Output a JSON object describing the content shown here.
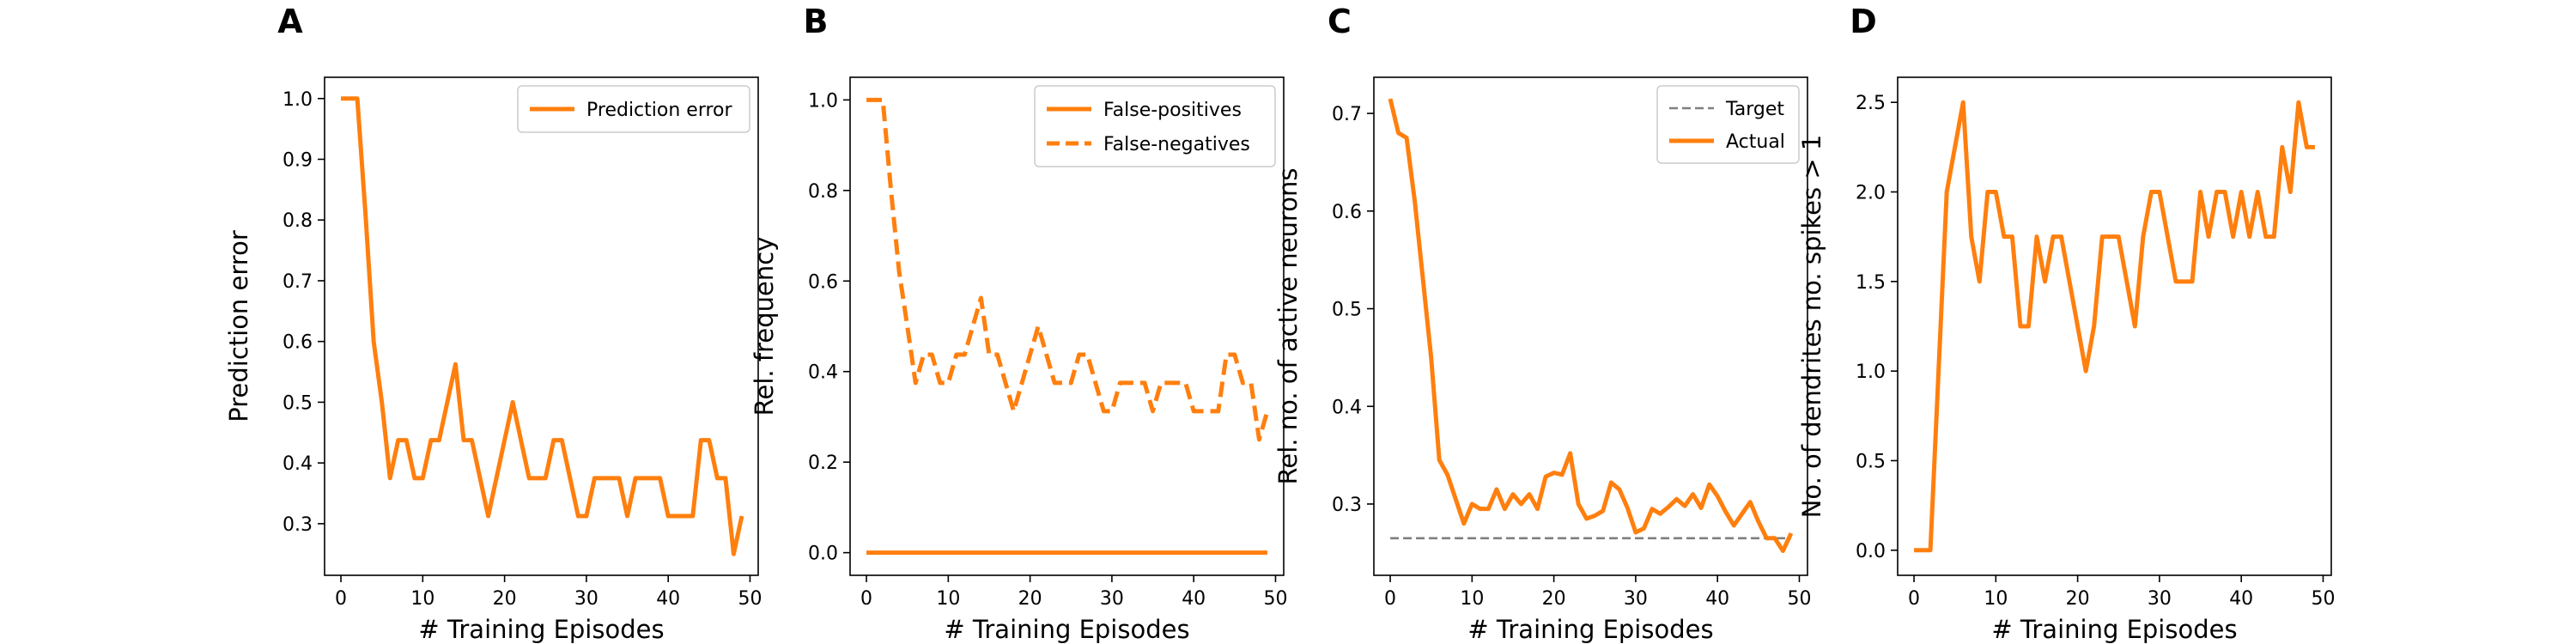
{
  "colors": {
    "orange": "#ff7f0e",
    "gray": "#7f7f7f",
    "frame": "#000000",
    "legend_frame": "#cccccc"
  },
  "chart_data": [
    {
      "panel": "A",
      "type": "line",
      "xlabel": "# Training Episodes",
      "ylabel": "Prediction error",
      "xlim": [
        -2,
        51
      ],
      "ylim": [
        0.215,
        1.035
      ],
      "xticks": [
        0,
        10,
        20,
        30,
        40,
        50
      ],
      "yticks": [
        0.3,
        0.4,
        0.5,
        0.6,
        0.7,
        0.8,
        0.9,
        1.0
      ],
      "ytick_labels": [
        "0.3",
        "0.4",
        "0.5",
        "0.6",
        "0.7",
        "0.8",
        "0.9",
        "1.0"
      ],
      "legend": "upper right",
      "series": [
        {
          "name": "Prediction error",
          "style": "solid",
          "color": "#ff7f0e",
          "x": [
            0,
            1,
            2,
            3,
            4,
            5,
            6,
            7,
            8,
            9,
            10,
            11,
            12,
            13,
            14,
            15,
            16,
            17,
            18,
            19,
            20,
            21,
            22,
            23,
            24,
            25,
            26,
            27,
            28,
            29,
            30,
            31,
            32,
            33,
            34,
            35,
            36,
            37,
            38,
            39,
            40,
            41,
            42,
            43,
            44,
            45,
            46,
            47,
            48,
            49
          ],
          "y": [
            1.0,
            1.0,
            1.0,
            0.81,
            0.6,
            0.5,
            0.375,
            0.4375,
            0.4375,
            0.375,
            0.375,
            0.4375,
            0.4375,
            0.5,
            0.5625,
            0.4375,
            0.4375,
            0.375,
            0.3125,
            0.375,
            0.4375,
            0.5,
            0.4375,
            0.375,
            0.375,
            0.375,
            0.4375,
            0.4375,
            0.375,
            0.3125,
            0.3125,
            0.375,
            0.375,
            0.375,
            0.375,
            0.3125,
            0.375,
            0.375,
            0.375,
            0.375,
            0.3125,
            0.3125,
            0.3125,
            0.3125,
            0.4375,
            0.4375,
            0.375,
            0.375,
            0.25,
            0.3125
          ]
        }
      ]
    },
    {
      "panel": "B",
      "type": "line",
      "xlabel": "# Training Episodes",
      "ylabel": "Rel. frequency",
      "xlim": [
        -2,
        51
      ],
      "ylim": [
        -0.05,
        1.05
      ],
      "xticks": [
        0,
        10,
        20,
        30,
        40,
        50
      ],
      "yticks": [
        0.0,
        0.2,
        0.4,
        0.6,
        0.8,
        1.0
      ],
      "ytick_labels": [
        "0.0",
        "0.2",
        "0.4",
        "0.6",
        "0.8",
        "1.0"
      ],
      "legend": "upper right",
      "series": [
        {
          "name": "False-positives",
          "style": "solid",
          "color": "#ff7f0e",
          "x": [
            0,
            1,
            2,
            3,
            4,
            5,
            6,
            7,
            8,
            9,
            10,
            11,
            12,
            13,
            14,
            15,
            16,
            17,
            18,
            19,
            20,
            21,
            22,
            23,
            24,
            25,
            26,
            27,
            28,
            29,
            30,
            31,
            32,
            33,
            34,
            35,
            36,
            37,
            38,
            39,
            40,
            41,
            42,
            43,
            44,
            45,
            46,
            47,
            48,
            49
          ],
          "y": [
            0,
            0,
            0,
            0,
            0,
            0,
            0,
            0,
            0,
            0,
            0,
            0,
            0,
            0,
            0,
            0,
            0,
            0,
            0,
            0,
            0,
            0,
            0,
            0,
            0,
            0,
            0,
            0,
            0,
            0,
            0,
            0,
            0,
            0,
            0,
            0,
            0,
            0,
            0,
            0,
            0,
            0,
            0,
            0,
            0,
            0,
            0,
            0,
            0,
            0
          ]
        },
        {
          "name": "False-negatives",
          "style": "dashed",
          "color": "#ff7f0e",
          "x": [
            0,
            1,
            2,
            3,
            4,
            5,
            6,
            7,
            8,
            9,
            10,
            11,
            12,
            13,
            14,
            15,
            16,
            17,
            18,
            19,
            20,
            21,
            22,
            23,
            24,
            25,
            26,
            27,
            28,
            29,
            30,
            31,
            32,
            33,
            34,
            35,
            36,
            37,
            38,
            39,
            40,
            41,
            42,
            43,
            44,
            45,
            46,
            47,
            48,
            49
          ],
          "y": [
            1.0,
            1.0,
            1.0,
            0.8,
            0.62,
            0.5,
            0.375,
            0.4375,
            0.4375,
            0.375,
            0.375,
            0.4375,
            0.4375,
            0.5,
            0.5625,
            0.4375,
            0.4375,
            0.375,
            0.3125,
            0.375,
            0.4375,
            0.5,
            0.4375,
            0.375,
            0.375,
            0.375,
            0.4375,
            0.4375,
            0.375,
            0.3125,
            0.3125,
            0.375,
            0.375,
            0.375,
            0.375,
            0.3125,
            0.375,
            0.375,
            0.375,
            0.375,
            0.3125,
            0.3125,
            0.3125,
            0.3125,
            0.4375,
            0.4375,
            0.375,
            0.375,
            0.25,
            0.3125
          ]
        }
      ]
    },
    {
      "panel": "C",
      "type": "line",
      "xlabel": "# Training Episodes",
      "ylabel": "Rel. no. of active neurons",
      "xlim": [
        -2,
        51
      ],
      "ylim": [
        0.227,
        0.737
      ],
      "xticks": [
        0,
        10,
        20,
        30,
        40,
        50
      ],
      "yticks": [
        0.3,
        0.4,
        0.5,
        0.6,
        0.7
      ],
      "ytick_labels": [
        "0.3",
        "0.4",
        "0.5",
        "0.6",
        "0.7"
      ],
      "legend": "upper right",
      "series": [
        {
          "name": "Target",
          "style": "dashed-thin",
          "color": "#7f7f7f",
          "x": [
            0,
            49
          ],
          "y": [
            0.265,
            0.265
          ]
        },
        {
          "name": "Actual",
          "style": "solid",
          "color": "#ff7f0e",
          "x": [
            0,
            1,
            2,
            3,
            4,
            5,
            6,
            7,
            8,
            9,
            10,
            11,
            12,
            13,
            14,
            15,
            16,
            17,
            18,
            19,
            20,
            21,
            22,
            23,
            24,
            25,
            26,
            27,
            28,
            29,
            30,
            31,
            32,
            33,
            34,
            35,
            36,
            37,
            38,
            39,
            40,
            41,
            42,
            43,
            44,
            45,
            46,
            47,
            48,
            49
          ],
          "y": [
            0.715,
            0.68,
            0.675,
            0.61,
            0.53,
            0.45,
            0.345,
            0.33,
            0.305,
            0.28,
            0.3,
            0.295,
            0.295,
            0.315,
            0.295,
            0.31,
            0.3,
            0.31,
            0.295,
            0.328,
            0.332,
            0.33,
            0.352,
            0.3,
            0.285,
            0.288,
            0.293,
            0.322,
            0.315,
            0.296,
            0.271,
            0.275,
            0.295,
            0.29,
            0.297,
            0.305,
            0.298,
            0.31,
            0.296,
            0.32,
            0.308,
            0.292,
            0.278,
            0.29,
            0.302,
            0.282,
            0.265,
            0.265,
            0.252,
            0.27
          ]
        }
      ]
    },
    {
      "panel": "D",
      "type": "line",
      "xlabel": "# Training Episodes",
      "ylabel": "No. of dendrites no. spikes > 1",
      "xlim": [
        -2,
        51
      ],
      "ylim": [
        -0.14,
        2.64
      ],
      "xticks": [
        0,
        10,
        20,
        30,
        40,
        50
      ],
      "yticks": [
        0.0,
        0.5,
        1.0,
        1.5,
        2.0,
        2.5
      ],
      "ytick_labels": [
        "0.0",
        "0.5",
        "1.0",
        "1.5",
        "2.0",
        "2.5"
      ],
      "legend": "none",
      "series": [
        {
          "name": "",
          "style": "solid",
          "color": "#ff7f0e",
          "x": [
            0,
            1,
            2,
            3,
            4,
            5,
            6,
            7,
            8,
            9,
            10,
            11,
            12,
            13,
            14,
            15,
            16,
            17,
            18,
            19,
            20,
            21,
            22,
            23,
            24,
            25,
            26,
            27,
            28,
            29,
            30,
            31,
            32,
            33,
            34,
            35,
            36,
            37,
            38,
            39,
            40,
            41,
            42,
            43,
            44,
            45,
            46,
            47,
            48,
            49
          ],
          "y": [
            0,
            0,
            0,
            1.0,
            2.0,
            2.25,
            2.5,
            1.75,
            1.5,
            2.0,
            2.0,
            1.75,
            1.75,
            1.25,
            1.25,
            1.75,
            1.5,
            1.75,
            1.75,
            1.5,
            1.25,
            1.0,
            1.25,
            1.75,
            1.75,
            1.75,
            1.5,
            1.25,
            1.75,
            2.0,
            2.0,
            1.75,
            1.5,
            1.5,
            1.5,
            2.0,
            1.75,
            2.0,
            2.0,
            1.75,
            2.0,
            1.75,
            2.0,
            1.75,
            1.75,
            2.25,
            2.0,
            2.5,
            2.25,
            2.25
          ]
        }
      ]
    }
  ]
}
